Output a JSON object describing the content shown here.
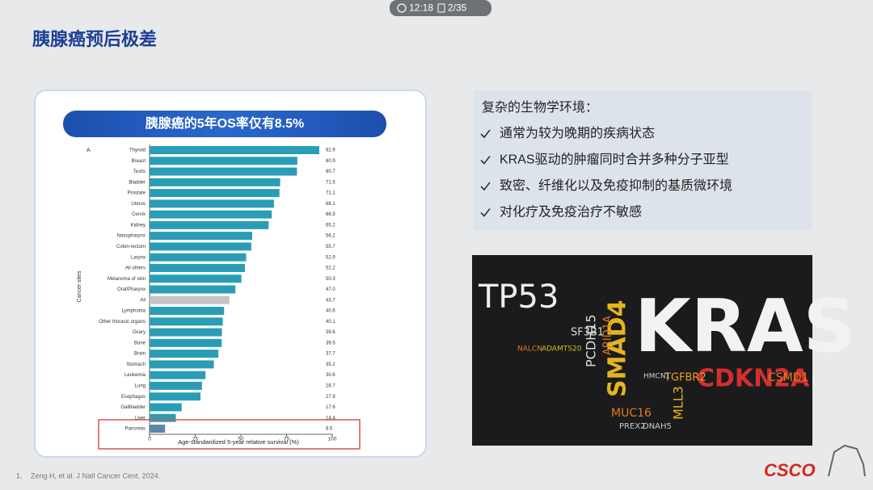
{
  "header": {
    "time": "12:18",
    "page": "2/35"
  },
  "title": "胰腺癌预后极差",
  "chart_data": {
    "type": "bar",
    "orientation": "horizontal",
    "title": "胰腺癌的5年OS率仅有8.5%",
    "panel_label": "A",
    "y_label": "Cancer sites",
    "x_label": "Age-standardized 5-year relative survival (%)",
    "categories": [
      "Thyroid",
      "Breast",
      "Testis",
      "Bladder",
      "Prostate",
      "Uterus",
      "Cervix",
      "Kidney",
      "Nasopharynx",
      "Colon-rectum",
      "Larynx",
      "All others",
      "Melanoma of skin",
      "Oral/Pharynx",
      "All",
      "Lymphoma",
      "Other thoracic organs",
      "Ovary",
      "Bone",
      "Brain",
      "Stomach",
      "Leukemia",
      "Lung",
      "Esophagus",
      "Gallbladder",
      "Liver",
      "Pancreas"
    ],
    "values": [
      92.9,
      80.9,
      80.7,
      71.5,
      71.1,
      68.1,
      66.9,
      65.2,
      56.2,
      55.7,
      52.9,
      52.2,
      50.3,
      47.0,
      43.7,
      40.8,
      40.1,
      39.6,
      39.5,
      37.7,
      35.2,
      30.6,
      28.7,
      27.9,
      17.6,
      14.4,
      8.5
    ],
    "value_labels": [
      "92.9",
      "80.9",
      "80.7",
      "71.5",
      "71.1",
      "68.1",
      "66.9",
      "65.2",
      "56.2",
      "55.7",
      "52.9",
      "52.2",
      "50.3",
      "47.0",
      "43.7",
      "40.8",
      "40.1",
      "39.6",
      "39.5",
      "37.7",
      "35.2",
      "30.6",
      "28.7",
      "27.9",
      "17.6",
      "14.4",
      "8.5"
    ],
    "colors": [
      "#2a9db6",
      "#2a9db6",
      "#2a9db6",
      "#2a9db6",
      "#2a9db6",
      "#2a9db6",
      "#2a9db6",
      "#2a9db6",
      "#2a9db6",
      "#2a9db6",
      "#2a9db6",
      "#2a9db6",
      "#2a9db6",
      "#2a9db6",
      "#c4c4c4",
      "#2a9db6",
      "#2a9db6",
      "#2a9db6",
      "#2a9db6",
      "#2a9db6",
      "#2a9db6",
      "#2a9db6",
      "#2a9db6",
      "#2a9db6",
      "#2a9db6",
      "#2a9db6",
      "#5a88a6"
    ],
    "xlim": [
      0,
      100
    ],
    "xticks": [
      0,
      25,
      50,
      75,
      100
    ]
  },
  "panel": {
    "heading": "复杂的生物学环境：",
    "bullets": [
      "通常为较为晚期的疾病状态",
      "KRAS驱动的肿瘤同时合并多种分子亚型",
      "致密、纤维化以及免疫抑制的基质微环境",
      "对化疗及免疫治疗不敏感"
    ]
  },
  "wordcloud": {
    "words": [
      "TP53",
      "KRAS",
      "SMAD4",
      "PCDH15",
      "CDKN2A",
      "TGFBR2",
      "MUC16",
      "MLL3",
      "SF3B1",
      "ARID1A",
      "CSMD1",
      "DNAH5",
      "PREX2",
      "HMCN1",
      "NALCN",
      "ADAMTS20"
    ]
  },
  "footnote": {
    "number": "1.",
    "text": "Zeng H, et al. J Natl Cancer Cent. 2024."
  },
  "logo": "CSCO"
}
